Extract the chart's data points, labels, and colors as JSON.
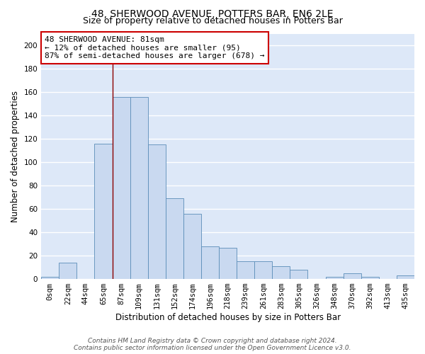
{
  "title": "48, SHERWOOD AVENUE, POTTERS BAR, EN6 2LE",
  "subtitle": "Size of property relative to detached houses in Potters Bar",
  "xlabel": "Distribution of detached houses by size in Potters Bar",
  "ylabel": "Number of detached properties",
  "bar_color": "#c9d9f0",
  "bar_edge_color": "#5b8db8",
  "background_color": "#dde8f8",
  "grid_color": "white",
  "tick_labels": [
    "0sqm",
    "22sqm",
    "44sqm",
    "65sqm",
    "87sqm",
    "109sqm",
    "131sqm",
    "152sqm",
    "174sqm",
    "196sqm",
    "218sqm",
    "239sqm",
    "261sqm",
    "283sqm",
    "305sqm",
    "326sqm",
    "348sqm",
    "370sqm",
    "392sqm",
    "413sqm",
    "435sqm"
  ],
  "bar_heights": [
    2,
    14,
    0,
    116,
    156,
    156,
    115,
    69,
    56,
    28,
    27,
    15,
    15,
    11,
    8,
    0,
    2,
    5,
    2,
    0,
    3
  ],
  "ylim": [
    0,
    210
  ],
  "yticks": [
    0,
    20,
    40,
    60,
    80,
    100,
    120,
    140,
    160,
    180,
    200
  ],
  "property_line_color": "#8b0000",
  "annotation_text": "48 SHERWOOD AVENUE: 81sqm\n← 12% of detached houses are smaller (95)\n87% of semi-detached houses are larger (678) →",
  "annotation_box_color": "white",
  "annotation_box_edge_color": "#cc0000",
  "footer_line1": "Contains HM Land Registry data © Crown copyright and database right 2024.",
  "footer_line2": "Contains public sector information licensed under the Open Government Licence v3.0.",
  "title_fontsize": 10,
  "subtitle_fontsize": 9,
  "axis_label_fontsize": 8.5,
  "tick_fontsize": 7.5,
  "annotation_fontsize": 8,
  "footer_fontsize": 6.5
}
